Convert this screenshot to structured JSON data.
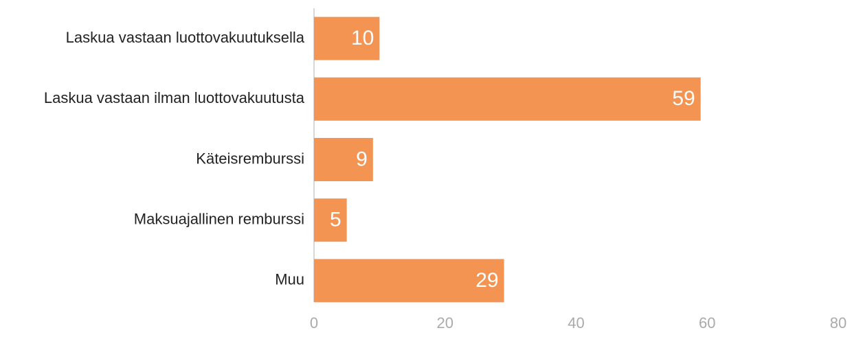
{
  "chart_data": {
    "type": "bar",
    "orientation": "horizontal",
    "categories": [
      "Laskua vastaan luottovakuutuksella",
      "Laskua vastaan ilman luottovakuutusta",
      "Käteisremburssi",
      "Maksuajallinen remburssi",
      "Muu"
    ],
    "values": [
      10,
      59,
      9,
      5,
      29
    ],
    "color": "#f39453",
    "xlim": [
      0,
      80
    ],
    "xticks": [
      0,
      20,
      40,
      60,
      80
    ],
    "grid": false
  }
}
